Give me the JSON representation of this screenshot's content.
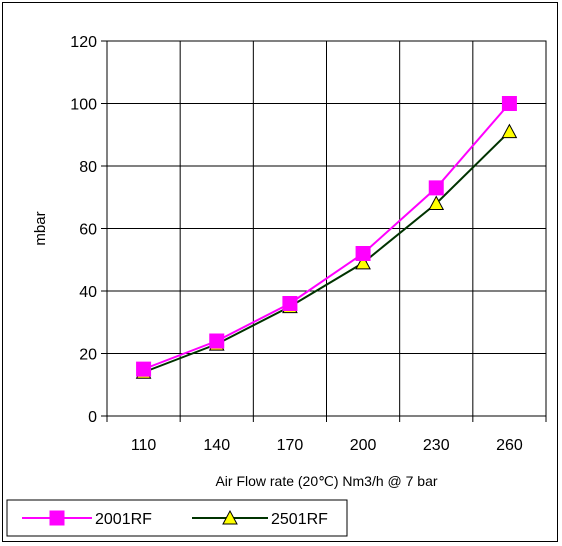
{
  "chart_data": {
    "type": "line",
    "x_label": "Air Flow rate (20℃) Nm3/h @ 7 bar",
    "y_label": "mbar",
    "categories": [
      "110",
      "140",
      "170",
      "200",
      "230",
      "260"
    ],
    "ylim": [
      0,
      120
    ],
    "y_ticks": [
      "0",
      "20",
      "40",
      "60",
      "80",
      "100",
      "120"
    ],
    "grid": true,
    "legend_position": "bottom-left",
    "series": [
      {
        "name": "2001RF",
        "values": [
          15,
          24,
          36,
          52,
          73,
          100
        ],
        "color": "#ff00ff",
        "marker": "square"
      },
      {
        "name": "2501RF",
        "values": [
          14,
          23,
          35,
          49,
          68,
          91
        ],
        "color": "#003300",
        "marker": "triangle",
        "marker_fill": "#ffff00"
      }
    ]
  }
}
